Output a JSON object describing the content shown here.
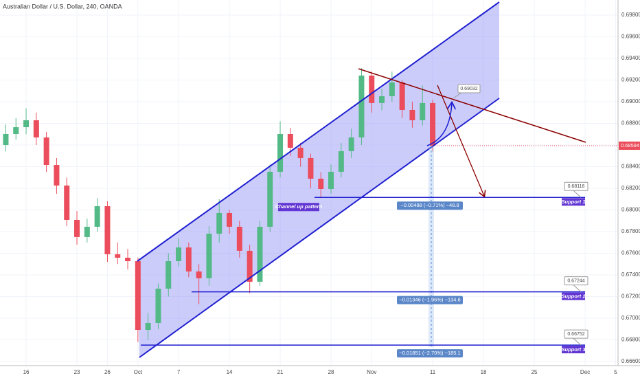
{
  "chart_data": {
    "type": "candlestick",
    "title": "Australian Dollar / U.S. Dollar, 240, OANDA",
    "up_color": "#53b987",
    "down_color": "#eb4d5c",
    "channel_color": "#1f1fd0",
    "x": [
      -2,
      -1,
      0,
      1,
      2,
      3,
      4,
      5,
      6,
      7,
      8,
      9,
      10,
      11,
      12,
      13,
      14,
      15,
      16,
      17,
      18,
      19,
      20,
      21,
      22,
      23,
      24,
      25,
      26,
      27,
      28,
      29,
      30,
      31,
      32,
      33,
      34,
      35,
      36,
      37,
      38,
      39,
      40
    ],
    "candles": [
      [
        0.686,
        0.6879,
        0.6854,
        0.68702
      ],
      [
        0.68702,
        0.6885,
        0.6865,
        0.68765
      ],
      [
        0.68765,
        0.6894,
        0.687,
        0.68829
      ],
      [
        0.68829,
        0.689,
        0.686,
        0.6867
      ],
      [
        0.6867,
        0.6872,
        0.6835,
        0.68416
      ],
      [
        0.68416,
        0.6848,
        0.6815,
        0.68226
      ],
      [
        0.68226,
        0.683,
        0.6785,
        0.67908
      ],
      [
        0.67908,
        0.6799,
        0.6768,
        0.6775
      ],
      [
        0.6775,
        0.6792,
        0.677,
        0.67845
      ],
      [
        0.67845,
        0.6811,
        0.678,
        0.68035
      ],
      [
        0.68035,
        0.6808,
        0.6752,
        0.67591
      ],
      [
        0.67591,
        0.677,
        0.675,
        0.67559
      ],
      [
        0.67559,
        0.6764,
        0.6745,
        0.67527
      ],
      [
        0.67527,
        0.6756,
        0.6678,
        0.66892
      ],
      [
        0.66892,
        0.6705,
        0.668,
        0.66956
      ],
      [
        0.66956,
        0.6732,
        0.669,
        0.67273
      ],
      [
        0.67273,
        0.676,
        0.672,
        0.67527
      ],
      [
        0.67527,
        0.6774,
        0.6748,
        0.67654
      ],
      [
        0.67654,
        0.677,
        0.6738,
        0.67432
      ],
      [
        0.67432,
        0.675,
        0.6713,
        0.67369
      ],
      [
        0.67369,
        0.6785,
        0.673,
        0.67781
      ],
      [
        0.67781,
        0.681,
        0.677,
        0.67972
      ],
      [
        0.67972,
        0.68,
        0.6778,
        0.67845
      ],
      [
        0.67845,
        0.679,
        0.6756,
        0.67623
      ],
      [
        0.67623,
        0.6768,
        0.6723,
        0.67337
      ],
      [
        0.67337,
        0.679,
        0.673,
        0.67845
      ],
      [
        0.67845,
        0.6842,
        0.678,
        0.68353
      ],
      [
        0.68353,
        0.6882,
        0.683,
        0.68702
      ],
      [
        0.68702,
        0.6876,
        0.685,
        0.68575
      ],
      [
        0.68575,
        0.6862,
        0.684,
        0.6848
      ],
      [
        0.6848,
        0.6852,
        0.682,
        0.68289
      ],
      [
        0.68289,
        0.6835,
        0.6811,
        0.68194
      ],
      [
        0.68194,
        0.6842,
        0.6815,
        0.68353
      ],
      [
        0.68353,
        0.6862,
        0.683,
        0.68543
      ],
      [
        0.68543,
        0.6875,
        0.6848,
        0.6867
      ],
      [
        0.6867,
        0.6931,
        0.686,
        0.69242
      ],
      [
        0.69242,
        0.6928,
        0.689,
        0.68988
      ],
      [
        0.68988,
        0.6912,
        0.6892,
        0.69051
      ],
      [
        0.69051,
        0.6928,
        0.69,
        0.69178
      ],
      [
        0.69178,
        0.692,
        0.6885,
        0.68924
      ],
      [
        0.68924,
        0.69,
        0.6876,
        0.68829
      ],
      [
        0.68829,
        0.6915,
        0.6878,
        0.68988
      ],
      [
        0.68988,
        0.6902,
        0.6854,
        0.68594
      ]
    ],
    "xlim": [
      -2.57,
      58.24
    ],
    "xticks": [
      {
        "value": 0,
        "label": "16"
      },
      {
        "value": 5,
        "label": "23"
      },
      {
        "value": 8,
        "label": "26"
      },
      {
        "value": 11,
        "label": "Oct"
      },
      {
        "value": 15,
        "label": "7"
      },
      {
        "value": 20,
        "label": "14"
      },
      {
        "value": 25,
        "label": "21"
      },
      {
        "value": 30,
        "label": "28"
      },
      {
        "value": 34,
        "label": "Nov"
      },
      {
        "value": 40,
        "label": "11"
      },
      {
        "value": 45,
        "label": "18"
      },
      {
        "value": 50,
        "label": "25"
      },
      {
        "value": 55,
        "label": "Dec"
      },
      {
        "value": 58,
        "label": "5"
      }
    ],
    "ylim": [
      0.66562,
      0.6994
    ],
    "yticks": [
      {
        "value": 0.666,
        "label": "0.66600"
      },
      {
        "value": 0.668,
        "label": "0.66800"
      },
      {
        "value": 0.67,
        "label": "0.67000"
      },
      {
        "value": 0.672,
        "label": "0.67200"
      },
      {
        "value": 0.674,
        "label": "0.67400"
      },
      {
        "value": 0.676,
        "label": "0.67600"
      },
      {
        "value": 0.678,
        "label": "0.67800"
      },
      {
        "value": 0.68,
        "label": "0.68000"
      },
      {
        "value": 0.682,
        "label": "0.68200"
      },
      {
        "value": 0.684,
        "label": "0.68400"
      },
      {
        "value": 0.686,
        "label": "0.68600"
      },
      {
        "value": 0.688,
        "label": "0.68800"
      },
      {
        "value": 0.69,
        "label": "0.69000"
      },
      {
        "value": 0.692,
        "label": "0.69200"
      },
      {
        "value": 0.694,
        "label": "0.69400"
      },
      {
        "value": 0.696,
        "label": "0.69600"
      },
      {
        "value": 0.698,
        "label": "0.69800"
      }
    ],
    "last_price": 0.68594,
    "target": 0.69032,
    "pattern_label": "Channel up pattern",
    "supports": [
      {
        "name": "Support 1",
        "value": 0.68116,
        "measure": "−0.00488 (−0.71%) −48.8"
      },
      {
        "name": "Support 2",
        "value": 0.67244,
        "measure": "−0.01346 (−1.96%) −134.6"
      },
      {
        "name": "Support 3",
        "value": 0.66752,
        "measure": "−0.01851 (−2.70%) −185.1"
      }
    ]
  }
}
